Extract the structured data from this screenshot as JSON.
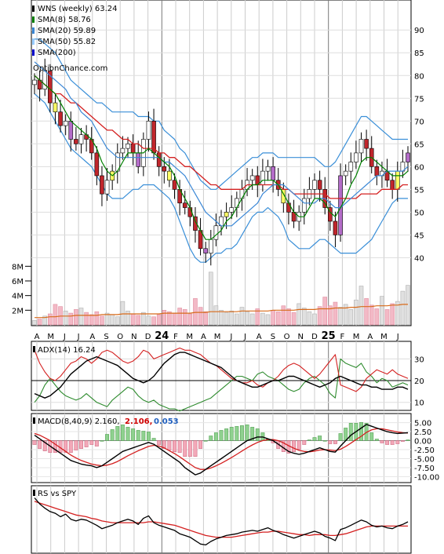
{
  "chart_data": {
    "type": "line",
    "source_label": "OptionChance.com",
    "x_months": [
      "A",
      "M",
      "J",
      "J",
      "A",
      "S",
      "O",
      "N",
      "D",
      "24",
      "F",
      "M",
      "A",
      "M",
      "J",
      "J",
      "A",
      "S",
      "O",
      "N",
      "D",
      "25",
      "F",
      "M",
      "A",
      "M",
      "J"
    ],
    "price_panel": {
      "ylim": [
        38,
        94
      ],
      "yticks": [
        40,
        45,
        50,
        55,
        60,
        65,
        70,
        75,
        80,
        85,
        90
      ],
      "legend": [
        {
          "label": "WNS (weekly) 63.24",
          "color": "#000000"
        },
        {
          "label": "SMA(8) 58.76",
          "color": "#008000"
        },
        {
          "label": "SMA(20) 59.89",
          "color": "#3a87d6"
        },
        {
          "label": "SMA(50) 55.82",
          "color": "#99ccff"
        },
        {
          "label": "SMA(200)",
          "color": "#0000cc"
        }
      ],
      "close": [
        79,
        77,
        81,
        74,
        72,
        69,
        70,
        66,
        65,
        67,
        66,
        63,
        58,
        54,
        57,
        59,
        63,
        64,
        65,
        63,
        60,
        66,
        70,
        63,
        60,
        59,
        57,
        55,
        52,
        51,
        49,
        46,
        42,
        41,
        44,
        47,
        49,
        50,
        51,
        53,
        55,
        57,
        58,
        56,
        59,
        60,
        57,
        55,
        52,
        50,
        48,
        50,
        53,
        55,
        57,
        55,
        51,
        48,
        45,
        58,
        59,
        61,
        63,
        66,
        64,
        60,
        58,
        59,
        57,
        55,
        59,
        61,
        63
      ],
      "sma8": [
        80,
        79,
        78,
        77,
        76,
        74,
        72,
        70,
        69,
        68,
        67,
        66,
        64,
        61,
        59,
        58,
        59,
        61,
        63,
        63,
        63,
        63,
        64,
        63,
        62,
        61,
        60,
        58,
        55,
        53,
        51,
        48,
        46,
        44,
        44,
        45,
        46,
        48,
        49,
        51,
        53,
        55,
        56,
        56,
        57,
        57,
        57,
        56,
        54,
        52,
        50,
        49,
        49,
        51,
        53,
        53,
        52,
        50,
        49,
        51,
        53,
        56,
        58,
        61,
        62,
        62,
        61,
        60,
        59,
        58,
        58,
        58,
        59
      ],
      "sma20": [
        83,
        82,
        81,
        80,
        79,
        78,
        77,
        75,
        74,
        72,
        71,
        70,
        68,
        66,
        64,
        63,
        62,
        62,
        62,
        62,
        62,
        62,
        62,
        62,
        62,
        61,
        61,
        60,
        59,
        58,
        56,
        54,
        52,
        50,
        49,
        48,
        47,
        47,
        47,
        48,
        49,
        50,
        51,
        52,
        54,
        55,
        56,
        56,
        56,
        55,
        54,
        53,
        52,
        52,
        52,
        53,
        53,
        52,
        51,
        51,
        52,
        53,
        54,
        55,
        56,
        57,
        58,
        58,
        59,
        59,
        59,
        59,
        60
      ],
      "sma50": [
        null,
        null,
        null,
        null,
        null,
        null,
        null,
        null,
        null,
        null,
        null,
        null,
        null,
        null,
        null,
        null,
        null,
        null,
        null,
        null,
        null,
        null,
        null,
        null,
        null,
        null,
        null,
        null,
        null,
        null,
        null,
        null,
        null,
        null,
        null,
        null,
        null,
        null,
        null,
        null,
        null,
        null,
        null,
        null,
        null,
        null,
        null,
        null,
        null,
        null,
        null,
        null,
        null,
        null,
        null,
        null,
        null,
        null,
        null,
        null,
        null,
        null,
        null,
        null,
        null,
        null,
        null,
        null,
        null,
        null,
        null,
        null,
        null
      ],
      "red_line": [
        80,
        79,
        78,
        77,
        76,
        76,
        75,
        74,
        74,
        73,
        72,
        71,
        70,
        69,
        68,
        68,
        67,
        66,
        66,
        65,
        65,
        64,
        64,
        64,
        63,
        63,
        62,
        62,
        61,
        60,
        60,
        59,
        58,
        57,
        56,
        56,
        55,
        55,
        55,
        55,
        55,
        56,
        56,
        56,
        56,
        56,
        56,
        56,
        55,
        55,
        54,
        54,
        54,
        54,
        54,
        54,
        54,
        53,
        53,
        53,
        53,
        53,
        53,
        54,
        54,
        54,
        54,
        55,
        55,
        55,
        55,
        56,
        56
      ],
      "bb_upper": [
        88,
        88,
        87,
        86,
        85,
        83,
        81,
        79,
        78,
        77,
        76,
        75,
        74,
        74,
        73,
        72,
        72,
        72,
        72,
        72,
        71,
        71,
        71,
        70,
        70,
        68,
        67,
        66,
        64,
        63,
        61,
        59,
        57,
        56,
        55,
        55,
        56,
        57,
        58,
        59,
        60,
        61,
        62,
        62,
        63,
        63,
        63,
        62,
        62,
        62,
        62,
        62,
        62,
        62,
        62,
        61,
        60,
        60,
        61,
        63,
        65,
        67,
        69,
        71,
        71,
        70,
        69,
        68,
        67,
        66,
        66,
        66,
        66
      ],
      "bb_lower": [
        76,
        75,
        74,
        72,
        70,
        68,
        66,
        64,
        63,
        62,
        61,
        60,
        58,
        56,
        54,
        53,
        53,
        53,
        54,
        55,
        55,
        56,
        56,
        56,
        55,
        54,
        53,
        51,
        48,
        45,
        42,
        40,
        39,
        39,
        40,
        41,
        41,
        42,
        42,
        43,
        45,
        47,
        49,
        50,
        50,
        51,
        50,
        49,
        47,
        44,
        43,
        42,
        42,
        42,
        43,
        44,
        44,
        43,
        42,
        41,
        41,
        41,
        41,
        42,
        43,
        44,
        46,
        48,
        50,
        52,
        53,
        53,
        53
      ]
    },
    "volume_panel": {
      "ylim": [
        0,
        9
      ],
      "yticks": [
        "2M",
        "4M",
        "6M",
        "8M"
      ],
      "values": [
        0.6,
        0.8,
        1.2,
        1.5,
        2.8,
        2.5,
        1.9,
        1.6,
        2.1,
        2.3,
        1.7,
        1.4,
        1.8,
        1.2,
        1.6,
        1.4,
        1.1,
        3.2,
        1.9,
        1.5,
        1.3,
        1.7,
        1.2,
        1.1,
        1.4,
        2.0,
        1.8,
        1.6,
        2.3,
        2.1,
        1.5,
        3.6,
        2.4,
        1.8,
        7.2,
        2.6,
        2.0,
        1.7,
        1.9,
        1.5,
        2.4,
        1.8,
        1.5,
        2.2,
        1.6,
        1.4,
        2.0,
        1.8,
        2.6,
        2.2,
        1.7,
        2.9,
        2.3,
        1.8,
        1.5,
        2.5,
        3.8,
        2.6,
        3.1,
        2.4,
        2.8,
        2.1,
        3.4,
        5.3,
        3.6,
        2.7,
        2.2,
        3.9,
        2.1,
        2.9,
        3.2,
        4.6,
        5.4
      ],
      "avg": [
        1.0,
        1.0,
        1.0,
        1.1,
        1.1,
        1.2,
        1.2,
        1.2,
        1.3,
        1.3,
        1.3,
        1.3,
        1.3,
        1.4,
        1.4,
        1.4,
        1.4,
        1.5,
        1.5,
        1.5,
        1.5,
        1.5,
        1.5,
        1.5,
        1.5,
        1.6,
        1.6,
        1.6,
        1.6,
        1.6,
        1.6,
        1.7,
        1.7,
        1.7,
        1.8,
        1.8,
        1.8,
        1.8,
        1.8,
        1.8,
        1.9,
        1.9,
        1.9,
        1.9,
        1.9,
        1.9,
        2.0,
        2.0,
        2.0,
        2.0,
        2.0,
        2.1,
        2.1,
        2.1,
        2.1,
        2.2,
        2.2,
        2.2,
        2.3,
        2.3,
        2.3,
        2.4,
        2.4,
        2.5,
        2.5,
        2.5,
        2.6,
        2.6,
        2.6,
        2.7,
        2.7,
        2.8,
        2.8
      ]
    },
    "adx_panel": {
      "label": "ADX(14) 16.24",
      "ylim": [
        7,
        37
      ],
      "yticks": [
        10,
        20,
        30
      ],
      "adx": [
        14,
        13,
        12,
        13,
        15,
        17,
        20,
        23,
        25,
        27,
        29,
        30,
        31,
        30,
        29,
        28,
        27,
        25,
        23,
        21,
        20,
        19,
        20,
        22,
        25,
        28,
        30,
        32,
        33,
        33,
        32,
        31,
        30,
        29,
        28,
        27,
        26,
        24,
        22,
        20,
        19,
        18,
        17,
        17,
        18,
        19,
        20,
        20,
        21,
        22,
        22,
        21,
        20,
        19,
        18,
        17,
        18,
        19,
        21,
        22,
        21,
        20,
        19,
        18,
        18,
        17,
        17,
        16,
        16,
        16,
        17,
        17,
        16
      ],
      "plus_di": [
        10,
        13,
        18,
        21,
        18,
        15,
        13,
        12,
        11,
        12,
        14,
        12,
        10,
        9,
        8,
        11,
        13,
        15,
        17,
        16,
        13,
        11,
        10,
        11,
        9,
        8,
        7,
        7,
        6,
        7,
        8,
        9,
        10,
        11,
        12,
        14,
        16,
        18,
        20,
        22,
        22,
        21,
        20,
        23,
        24,
        22,
        21,
        20,
        18,
        16,
        15,
        16,
        19,
        21,
        22,
        20,
        18,
        14,
        12,
        30,
        28,
        27,
        26,
        28,
        24,
        22,
        19,
        21,
        20,
        17,
        18,
        19,
        18
      ],
      "minus_di": [
        34,
        28,
        24,
        21,
        20,
        22,
        25,
        28,
        29,
        31,
        30,
        28,
        30,
        33,
        34,
        33,
        31,
        29,
        28,
        29,
        31,
        34,
        33,
        30,
        31,
        32,
        33,
        34,
        35,
        34,
        34,
        33,
        32,
        30,
        28,
        27,
        25,
        23,
        21,
        20,
        19,
        19,
        20,
        18,
        17,
        19,
        20,
        22,
        25,
        27,
        28,
        27,
        25,
        23,
        21,
        23,
        26,
        29,
        32,
        18,
        17,
        16,
        15,
        17,
        21,
        23,
        25,
        24,
        23,
        25,
        23,
        22,
        21
      ]
    },
    "macd_panel": {
      "label": "MACD(8,40,9) 2.160,",
      "signal_label": "2.106,",
      "hist_label": "0.053",
      "ylim": [
        -11,
        6
      ],
      "yticks": [
        "5.00",
        "2.50",
        "0.00",
        "-2.50",
        "-5.00",
        "-7.50",
        "-10.00"
      ],
      "macd": [
        1.5,
        0.5,
        -0.5,
        -1.5,
        -2.5,
        -3.5,
        -4.5,
        -5.5,
        -6.0,
        -6.5,
        -6.8,
        -7.0,
        -7.5,
        -7.0,
        -6.0,
        -5.0,
        -4.0,
        -3.0,
        -2.5,
        -2.0,
        -1.5,
        -1.0,
        -0.5,
        -1.0,
        -2.0,
        -3.0,
        -4.0,
        -5.0,
        -6.0,
        -7.5,
        -8.5,
        -9.5,
        -9.0,
        -8.0,
        -7.0,
        -6.0,
        -5.0,
        -4.0,
        -3.0,
        -2.0,
        -1.0,
        0.0,
        0.5,
        1.0,
        1.0,
        0.5,
        0.0,
        -1.0,
        -2.0,
        -3.0,
        -3.5,
        -3.8,
        -3.5,
        -3.0,
        -2.5,
        -2.0,
        -2.5,
        -3.0,
        -3.2,
        -1.5,
        0.0,
        1.5,
        2.5,
        3.5,
        4.5,
        4.0,
        3.5,
        3.0,
        2.5,
        2.2,
        2.0,
        2.1,
        2.2
      ],
      "signal": [
        2.0,
        1.5,
        0.8,
        0.0,
        -1.0,
        -2.0,
        -3.0,
        -4.0,
        -4.8,
        -5.5,
        -6.0,
        -6.5,
        -6.8,
        -7.0,
        -6.8,
        -6.4,
        -5.8,
        -5.0,
        -4.2,
        -3.5,
        -2.8,
        -2.2,
        -1.6,
        -1.3,
        -1.5,
        -2.0,
        -2.8,
        -3.6,
        -4.5,
        -5.5,
        -6.5,
        -7.5,
        -8.0,
        -8.0,
        -7.6,
        -7.0,
        -6.3,
        -5.5,
        -4.7,
        -3.8,
        -2.9,
        -2.0,
        -1.2,
        -0.5,
        0.0,
        0.3,
        0.3,
        0.0,
        -0.6,
        -1.4,
        -2.1,
        -2.7,
        -3.0,
        -3.1,
        -2.9,
        -2.6,
        -2.5,
        -2.6,
        -2.8,
        -2.4,
        -1.6,
        -0.7,
        0.3,
        1.2,
        2.3,
        3.0,
        3.3,
        3.3,
        3.0,
        2.7,
        2.4,
        2.2,
        2.1
      ]
    },
    "rs_panel": {
      "label": "RS vs SPY",
      "rs": [
        82,
        75,
        70,
        66,
        64,
        60,
        63,
        57,
        55,
        57,
        56,
        53,
        50,
        46,
        48,
        50,
        53,
        55,
        57,
        55,
        51,
        58,
        61,
        53,
        50,
        48,
        46,
        44,
        40,
        38,
        36,
        32,
        28,
        27,
        31,
        34,
        36,
        38,
        39,
        40,
        42,
        43,
        44,
        43,
        45,
        47,
        44,
        42,
        39,
        37,
        35,
        37,
        39,
        41,
        43,
        41,
        37,
        35,
        32,
        45,
        47,
        50,
        53,
        56,
        54,
        50,
        48,
        49,
        47,
        46,
        49,
        51,
        54
      ],
      "rs_sma": [
        78,
        76,
        74,
        72,
        70,
        68,
        66,
        64,
        62,
        61,
        60,
        58,
        57,
        55,
        54,
        53,
        53,
        53,
        53,
        53,
        53,
        53,
        54,
        54,
        53,
        52,
        51,
        50,
        48,
        46,
        44,
        42,
        40,
        38,
        37,
        36,
        36,
        36,
        36,
        37,
        38,
        39,
        40,
        41,
        42,
        42,
        43,
        43,
        42,
        41,
        40,
        39,
        39,
        38,
        39,
        39,
        39,
        38,
        38,
        39,
        40,
        42,
        44,
        46,
        48,
        49,
        49,
        49,
        49,
        49,
        49,
        49,
        49
      ]
    }
  }
}
